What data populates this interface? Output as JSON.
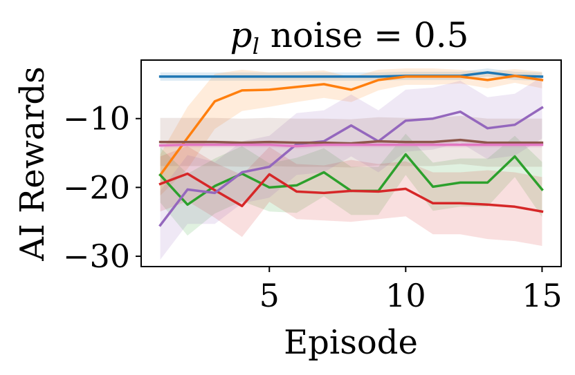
{
  "chart_data": {
    "type": "line",
    "title_var": "p",
    "title_sub": "l",
    "title_rest": " noise = 0.5",
    "xlabel": "Episode",
    "ylabel": "AI Rewards",
    "xlim": [
      0.3,
      15.7
    ],
    "ylim": [
      -31.5,
      -1.5
    ],
    "xticks": [
      5,
      10,
      15
    ],
    "yticks": [
      -10,
      -20,
      -30
    ],
    "x": [
      1,
      2,
      3,
      4,
      5,
      6,
      7,
      8,
      9,
      10,
      11,
      12,
      13,
      14,
      15
    ],
    "series": [
      {
        "name": "blue",
        "color": "#1f77b4",
        "values": [
          -3.9,
          -3.9,
          -3.9,
          -3.9,
          -3.9,
          -3.9,
          -3.9,
          -3.9,
          -3.9,
          -3.8,
          -3.8,
          -3.8,
          -3.3,
          -3.8,
          -3.9
        ],
        "spread": [
          0.6,
          0.6,
          0.6,
          0.6,
          0.6,
          0.6,
          0.6,
          0.6,
          0.6,
          0.6,
          0.6,
          0.6,
          0.6,
          0.6,
          0.6
        ]
      },
      {
        "name": "orange",
        "color": "#ff7f0e",
        "values": [
          -18.2,
          -12.8,
          -7.5,
          -5.9,
          -5.8,
          -5.4,
          -5.0,
          -5.8,
          -4.4,
          -3.9,
          -3.9,
          -3.9,
          -4.4,
          -3.8,
          -4.4
        ],
        "spread": [
          3.0,
          4.5,
          4.0,
          3.0,
          2.5,
          2.2,
          2.0,
          1.8,
          1.5,
          1.2,
          1.2,
          1.0,
          1.2,
          1.0,
          1.2
        ]
      },
      {
        "name": "green",
        "color": "#2ca02c",
        "values": [
          -18.2,
          -22.5,
          -19.8,
          -18.0,
          -20.0,
          -19.7,
          -17.8,
          -20.5,
          -20.5,
          -15.2,
          -19.9,
          -19.3,
          -19.3,
          -15.5,
          -20.3
        ],
        "spread": [
          4.0,
          4.5,
          4.0,
          4.0,
          3.5,
          4.0,
          3.5,
          3.5,
          3.5,
          3.0,
          3.5,
          3.5,
          3.5,
          3.0,
          4.0
        ]
      },
      {
        "name": "red",
        "color": "#d62728",
        "values": [
          -19.5,
          -18.0,
          -20.4,
          -22.7,
          -18.1,
          -20.6,
          -20.8,
          -20.5,
          -20.6,
          -20.2,
          -22.3,
          -22.3,
          -22.5,
          -22.8,
          -23.5
        ],
        "spread": [
          4.0,
          4.0,
          4.0,
          4.5,
          4.0,
          4.0,
          4.0,
          4.5,
          4.0,
          4.0,
          4.5,
          4.5,
          5.0,
          5.0,
          5.0
        ]
      },
      {
        "name": "purple",
        "color": "#9467bd",
        "values": [
          -25.5,
          -20.3,
          -20.8,
          -17.8,
          -17.0,
          -13.7,
          -13.3,
          -11.0,
          -13.3,
          -10.3,
          -10.0,
          -9.0,
          -11.4,
          -10.9,
          -8.4
        ],
        "spread": [
          5.0,
          5.0,
          4.5,
          4.5,
          4.5,
          4.5,
          4.5,
          4.5,
          4.5,
          4.5,
          4.5,
          4.5,
          4.5,
          4.5,
          4.5
        ]
      },
      {
        "name": "brown",
        "color": "#8c564b",
        "values": [
          -13.4,
          -13.4,
          -13.4,
          -13.5,
          -13.4,
          -13.5,
          -13.5,
          -13.6,
          -13.3,
          -13.4,
          -13.4,
          -13.1,
          -13.5,
          -13.5,
          -13.5
        ],
        "spread": [
          3.5,
          3.5,
          3.5,
          3.5,
          3.5,
          3.5,
          3.5,
          3.5,
          3.5,
          3.5,
          3.5,
          3.5,
          3.5,
          3.5,
          3.5
        ]
      },
      {
        "name": "pink",
        "color": "#e377c2",
        "values": [
          -13.9,
          -13.8,
          -13.8,
          -13.8,
          -13.8,
          -14.0,
          -13.8,
          -13.8,
          -13.8,
          -13.8,
          -13.8,
          -13.8,
          -13.8,
          -13.8,
          -13.8
        ],
        "spread": [
          0.4,
          0.4,
          0.4,
          0.4,
          0.4,
          0.4,
          0.4,
          0.4,
          0.4,
          0.4,
          0.4,
          0.4,
          0.4,
          0.4,
          0.4
        ]
      }
    ]
  }
}
